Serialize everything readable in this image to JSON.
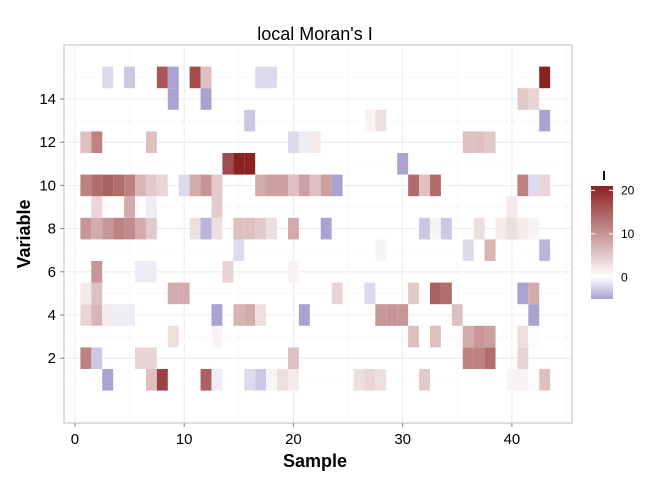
{
  "chart_data": {
    "type": "heatmap",
    "title": "local Moran's I",
    "xlabel": "Sample",
    "ylabel": "Variable",
    "xlim": [
      -1,
      45.5
    ],
    "ylim": [
      -1,
      16.5
    ],
    "x_ticks": [
      0,
      10,
      20,
      30,
      40
    ],
    "y_ticks": [
      2,
      4,
      6,
      8,
      10,
      12,
      14
    ],
    "grid": true,
    "legend": {
      "title": "I",
      "position": "right",
      "ticks": [
        0,
        10,
        20
      ],
      "range": [
        -5,
        21
      ],
      "colors": {
        "low": "#aaa3d2",
        "mid": "#ffffff",
        "high": "#8b2222"
      }
    },
    "cells": [
      [
        3,
        1,
        -5
      ],
      [
        7,
        1,
        6
      ],
      [
        8,
        1,
        18
      ],
      [
        12,
        1,
        15
      ],
      [
        13,
        1,
        -1
      ],
      [
        16,
        1,
        -2
      ],
      [
        17,
        1,
        -3
      ],
      [
        18,
        1,
        1
      ],
      [
        19,
        1,
        3
      ],
      [
        20,
        1,
        2
      ],
      [
        26,
        1,
        3
      ],
      [
        27,
        1,
        4
      ],
      [
        28,
        1,
        3
      ],
      [
        32,
        1,
        5
      ],
      [
        40,
        1,
        1
      ],
      [
        41,
        1,
        1
      ],
      [
        42,
        1,
        0.5
      ],
      [
        43,
        1,
        6
      ],
      [
        1,
        2,
        12
      ],
      [
        2,
        2,
        -3
      ],
      [
        6,
        2,
        4
      ],
      [
        7,
        2,
        4
      ],
      [
        20,
        2,
        6
      ],
      [
        36,
        2,
        12
      ],
      [
        37,
        2,
        12
      ],
      [
        38,
        2,
        14
      ],
      [
        41,
        2,
        4
      ],
      [
        9,
        3,
        3
      ],
      [
        13,
        3,
        1
      ],
      [
        31,
        3,
        6
      ],
      [
        33,
        3,
        6
      ],
      [
        36,
        3,
        8
      ],
      [
        37,
        3,
        10
      ],
      [
        38,
        3,
        9
      ],
      [
        41,
        3,
        3
      ],
      [
        42,
        3,
        0.5
      ],
      [
        1,
        4,
        4
      ],
      [
        2,
        4,
        7
      ],
      [
        3,
        4,
        2
      ],
      [
        4,
        4,
        -1
      ],
      [
        5,
        4,
        -1
      ],
      [
        13,
        4,
        -5
      ],
      [
        15,
        4,
        7
      ],
      [
        16,
        4,
        8
      ],
      [
        17,
        4,
        3
      ],
      [
        21,
        4,
        -6
      ],
      [
        28,
        4,
        10
      ],
      [
        29,
        4,
        10
      ],
      [
        30,
        4,
        10
      ],
      [
        35,
        4,
        6
      ],
      [
        42,
        4,
        -9
      ],
      [
        1,
        5,
        2
      ],
      [
        2,
        5,
        6
      ],
      [
        9,
        5,
        8
      ],
      [
        10,
        5,
        8
      ],
      [
        24,
        5,
        4
      ],
      [
        27,
        5,
        -2
      ],
      [
        31,
        5,
        5
      ],
      [
        33,
        5,
        15
      ],
      [
        34,
        5,
        14
      ],
      [
        41,
        5,
        -6
      ],
      [
        42,
        5,
        8
      ],
      [
        2,
        6,
        10
      ],
      [
        6,
        6,
        -1
      ],
      [
        7,
        6,
        -1
      ],
      [
        14,
        6,
        4
      ],
      [
        20,
        6,
        1
      ],
      [
        15,
        7,
        -2
      ],
      [
        28,
        7,
        1
      ],
      [
        36,
        7,
        -2
      ],
      [
        38,
        7,
        7
      ],
      [
        43,
        7,
        -4
      ],
      [
        1,
        8,
        10
      ],
      [
        2,
        8,
        8
      ],
      [
        3,
        8,
        10
      ],
      [
        4,
        8,
        12
      ],
      [
        5,
        8,
        11
      ],
      [
        6,
        8,
        8
      ],
      [
        7,
        8,
        5
      ],
      [
        11,
        8,
        3
      ],
      [
        12,
        8,
        -4
      ],
      [
        13,
        8,
        3
      ],
      [
        15,
        8,
        6
      ],
      [
        16,
        8,
        6
      ],
      [
        17,
        8,
        5
      ],
      [
        18,
        8,
        3
      ],
      [
        20,
        8,
        8
      ],
      [
        23,
        8,
        -8
      ],
      [
        32,
        8,
        -3
      ],
      [
        33,
        8,
        1
      ],
      [
        34,
        8,
        -3
      ],
      [
        37,
        8,
        3
      ],
      [
        39,
        8,
        2
      ],
      [
        40,
        8,
        3
      ],
      [
        41,
        8,
        2
      ],
      [
        42,
        8,
        1
      ],
      [
        2,
        9,
        4
      ],
      [
        5,
        9,
        8
      ],
      [
        7,
        9,
        -1
      ],
      [
        13,
        9,
        5
      ],
      [
        40,
        9,
        2
      ],
      [
        1,
        10,
        12
      ],
      [
        2,
        10,
        14
      ],
      [
        3,
        10,
        15
      ],
      [
        4,
        10,
        14
      ],
      [
        5,
        10,
        12
      ],
      [
        6,
        10,
        7
      ],
      [
        7,
        10,
        5
      ],
      [
        8,
        10,
        4
      ],
      [
        10,
        10,
        -2
      ],
      [
        11,
        10,
        8
      ],
      [
        12,
        10,
        10
      ],
      [
        13,
        10,
        5
      ],
      [
        17,
        10,
        8
      ],
      [
        18,
        10,
        9
      ],
      [
        19,
        10,
        9
      ],
      [
        20,
        10,
        6
      ],
      [
        21,
        10,
        9
      ],
      [
        22,
        10,
        6
      ],
      [
        23,
        10,
        9
      ],
      [
        24,
        10,
        -8
      ],
      [
        31,
        10,
        14
      ],
      [
        32,
        10,
        6
      ],
      [
        33,
        10,
        14
      ],
      [
        41,
        10,
        12
      ],
      [
        42,
        10,
        -2
      ],
      [
        43,
        10,
        4
      ],
      [
        14,
        11,
        17
      ],
      [
        15,
        11,
        21
      ],
      [
        16,
        11,
        21
      ],
      [
        30,
        11,
        -6
      ],
      [
        1,
        12,
        6
      ],
      [
        2,
        12,
        12
      ],
      [
        7,
        12,
        6
      ],
      [
        20,
        12,
        -2
      ],
      [
        21,
        12,
        -1
      ],
      [
        22,
        12,
        2
      ],
      [
        36,
        12,
        6
      ],
      [
        37,
        12,
        6
      ],
      [
        38,
        12,
        5
      ],
      [
        16,
        13,
        -3
      ],
      [
        27,
        13,
        1
      ],
      [
        28,
        13,
        3
      ],
      [
        43,
        13,
        -5
      ],
      [
        9,
        14,
        -6
      ],
      [
        12,
        14,
        -5
      ],
      [
        41,
        14,
        5
      ],
      [
        42,
        14,
        4
      ],
      [
        3,
        15,
        -2
      ],
      [
        5,
        15,
        -3
      ],
      [
        8,
        15,
        16
      ],
      [
        9,
        15,
        -6
      ],
      [
        11,
        15,
        17
      ],
      [
        12,
        15,
        6
      ],
      [
        17,
        15,
        -2
      ],
      [
        18,
        15,
        -2
      ],
      [
        43,
        15,
        21
      ]
    ]
  }
}
